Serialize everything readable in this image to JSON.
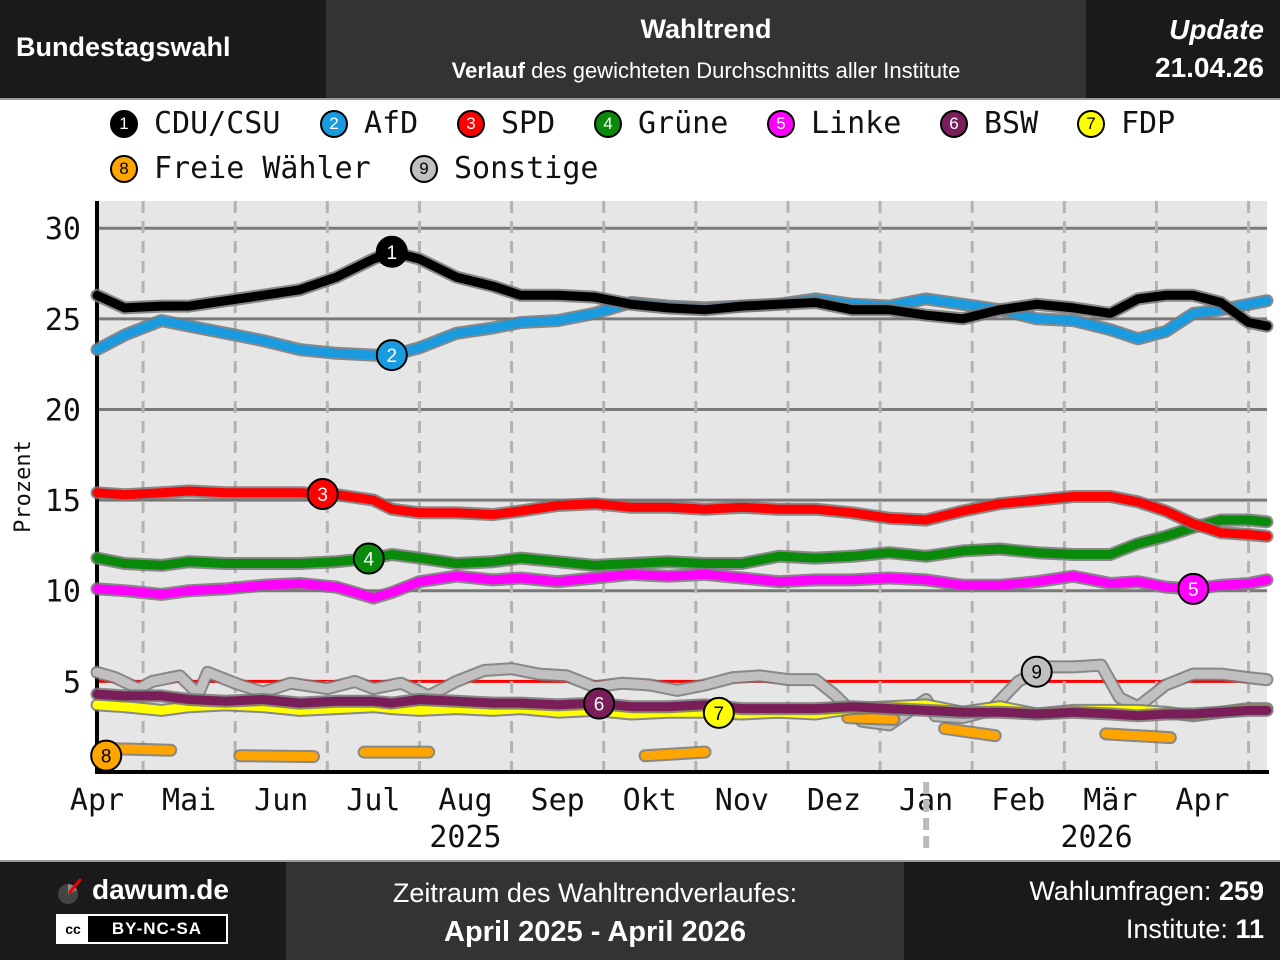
{
  "header": {
    "left_title": "Bundestagswahl",
    "center_title": "Wahltrend",
    "center_subtitle_bold": "Verlauf",
    "center_subtitle_rest": " des gewichteten Durchschnitts aller Institute",
    "update_label": "Update",
    "update_date": "21.04.26"
  },
  "legend": [
    {
      "num": "1",
      "label": "CDU/CSU",
      "color": "#000000",
      "text_color": "#ffffff"
    },
    {
      "num": "2",
      "label": "AfD",
      "color": "#1a9be0",
      "text_color": "#ffffff"
    },
    {
      "num": "3",
      "label": "SPD",
      "color": "#ff0000",
      "text_color": "#ffffff"
    },
    {
      "num": "4",
      "label": "Grüne",
      "color": "#0a8a0a",
      "text_color": "#ffffff"
    },
    {
      "num": "5",
      "label": "Linke",
      "color": "#ff00ff",
      "text_color": "#ffffff"
    },
    {
      "num": "6",
      "label": "BSW",
      "color": "#7a1e5a",
      "text_color": "#ffffff"
    },
    {
      "num": "7",
      "label": "FDP",
      "color": "#ffff00",
      "text_color": "#000000"
    },
    {
      "num": "8",
      "label": "Freie Wähler",
      "color": "#ffa500",
      "text_color": "#000000"
    },
    {
      "num": "9",
      "label": "Sonstige",
      "color": "#c0c0c0",
      "text_color": "#000000"
    }
  ],
  "chart_data": {
    "type": "line",
    "title": "Wahltrend",
    "xlabel": "",
    "ylabel": "Prozent",
    "ylim": [
      0,
      31.5
    ],
    "yticks": [
      5,
      10,
      15,
      20,
      25,
      30
    ],
    "threshold": 5,
    "threshold_color": "#ff0000",
    "x_range_months": [
      0,
      12.7
    ],
    "x_tick_labels": [
      "Apr",
      "Mai",
      "Jun",
      "Jul",
      "Aug",
      "Sep",
      "Okt",
      "Nov",
      "Dez",
      "Jan",
      "Feb",
      "Mär",
      "Apr"
    ],
    "year_labels": [
      {
        "label": "2025",
        "month": 4.0
      },
      {
        "label": "2026",
        "month": 10.85
      }
    ],
    "year_separator_month": 9.0,
    "series": [
      {
        "name": "CDU/CSU",
        "num": "1",
        "color": "#000000",
        "label_at": 3.2,
        "x": [
          0,
          0.3,
          0.7,
          1.0,
          1.4,
          1.8,
          2.2,
          2.6,
          3.0,
          3.2,
          3.5,
          3.9,
          4.3,
          4.6,
          5.0,
          5.4,
          5.8,
          6.2,
          6.6,
          7.0,
          7.4,
          7.8,
          8.2,
          8.6,
          9.0,
          9.4,
          9.8,
          10.2,
          10.6,
          11.0,
          11.3,
          11.6,
          11.9,
          12.2,
          12.5,
          12.7
        ],
        "y": [
          26.3,
          25.6,
          25.7,
          25.7,
          26.0,
          26.3,
          26.6,
          27.3,
          28.3,
          28.7,
          28.3,
          27.3,
          26.8,
          26.3,
          26.3,
          26.2,
          25.8,
          25.6,
          25.5,
          25.7,
          25.8,
          25.9,
          25.5,
          25.5,
          25.2,
          25.0,
          25.5,
          25.8,
          25.6,
          25.3,
          26.1,
          26.3,
          26.3,
          25.9,
          24.8,
          24.6
        ]
      },
      {
        "name": "AfD",
        "num": "2",
        "color": "#1a9be0",
        "label_at": 3.2,
        "x": [
          0,
          0.3,
          0.7,
          1.0,
          1.4,
          1.8,
          2.2,
          2.6,
          3.0,
          3.2,
          3.5,
          3.9,
          4.3,
          4.6,
          5.0,
          5.4,
          5.8,
          6.2,
          6.6,
          7.0,
          7.4,
          7.8,
          8.2,
          8.6,
          9.0,
          9.4,
          9.8,
          10.2,
          10.6,
          11.0,
          11.3,
          11.6,
          11.9,
          12.2,
          12.5,
          12.7
        ],
        "y": [
          23.3,
          24.1,
          24.9,
          24.6,
          24.2,
          23.8,
          23.3,
          23.1,
          23.0,
          23.0,
          23.4,
          24.2,
          24.5,
          24.8,
          24.9,
          25.3,
          25.9,
          25.7,
          25.6,
          25.7,
          25.8,
          26.1,
          25.8,
          25.7,
          26.1,
          25.8,
          25.5,
          25.0,
          24.9,
          24.4,
          23.9,
          24.3,
          25.3,
          25.5,
          25.8,
          26.0
        ]
      },
      {
        "name": "SPD",
        "num": "3",
        "color": "#ff0000",
        "label_at": 2.45,
        "x": [
          0,
          0.3,
          0.7,
          1.0,
          1.4,
          1.8,
          2.2,
          2.6,
          3.0,
          3.2,
          3.5,
          3.9,
          4.3,
          4.6,
          5.0,
          5.4,
          5.8,
          6.2,
          6.6,
          7.0,
          7.4,
          7.8,
          8.2,
          8.6,
          9.0,
          9.4,
          9.8,
          10.2,
          10.6,
          11.0,
          11.3,
          11.6,
          11.9,
          12.2,
          12.5,
          12.7
        ],
        "y": [
          15.4,
          15.3,
          15.4,
          15.5,
          15.4,
          15.4,
          15.4,
          15.3,
          15.0,
          14.5,
          14.3,
          14.3,
          14.2,
          14.4,
          14.7,
          14.8,
          14.6,
          14.6,
          14.5,
          14.6,
          14.5,
          14.5,
          14.3,
          14.0,
          13.9,
          14.4,
          14.8,
          15.0,
          15.2,
          15.2,
          14.9,
          14.4,
          13.7,
          13.2,
          13.1,
          13.0
        ]
      },
      {
        "name": "Grüne",
        "num": "4",
        "color": "#0a8a0a",
        "label_at": 2.95,
        "x": [
          0,
          0.3,
          0.7,
          1.0,
          1.4,
          1.8,
          2.2,
          2.6,
          3.0,
          3.2,
          3.5,
          3.9,
          4.3,
          4.6,
          5.0,
          5.4,
          5.8,
          6.2,
          6.6,
          7.0,
          7.4,
          7.8,
          8.2,
          8.6,
          9.0,
          9.4,
          9.8,
          10.2,
          10.6,
          11.0,
          11.3,
          11.6,
          11.9,
          12.2,
          12.5,
          12.7
        ],
        "y": [
          11.8,
          11.5,
          11.4,
          11.6,
          11.5,
          11.5,
          11.5,
          11.6,
          11.8,
          12.0,
          11.8,
          11.5,
          11.6,
          11.8,
          11.6,
          11.4,
          11.5,
          11.6,
          11.5,
          11.5,
          11.9,
          11.8,
          11.9,
          12.1,
          11.9,
          12.2,
          12.3,
          12.1,
          12.0,
          12.0,
          12.6,
          13.0,
          13.5,
          13.9,
          13.9,
          13.8
        ]
      },
      {
        "name": "Linke",
        "num": "5",
        "color": "#ff00ff",
        "label_at": 11.9,
        "x": [
          0,
          0.3,
          0.7,
          1.0,
          1.4,
          1.8,
          2.2,
          2.6,
          3.0,
          3.2,
          3.5,
          3.9,
          4.3,
          4.6,
          5.0,
          5.4,
          5.8,
          6.2,
          6.6,
          7.0,
          7.4,
          7.8,
          8.2,
          8.6,
          9.0,
          9.4,
          9.8,
          10.2,
          10.6,
          11.0,
          11.3,
          11.6,
          11.9,
          12.2,
          12.5,
          12.7
        ],
        "y": [
          10.1,
          10.0,
          9.8,
          10.0,
          10.1,
          10.3,
          10.4,
          10.2,
          9.6,
          9.9,
          10.5,
          10.8,
          10.6,
          10.7,
          10.5,
          10.7,
          10.9,
          10.8,
          10.9,
          10.7,
          10.5,
          10.6,
          10.6,
          10.7,
          10.6,
          10.3,
          10.3,
          10.5,
          10.8,
          10.4,
          10.5,
          10.2,
          10.1,
          10.3,
          10.4,
          10.6
        ]
      },
      {
        "name": "BSW",
        "num": "6",
        "color": "#7a1e5a",
        "label_at": 5.45,
        "x": [
          0,
          0.3,
          0.7,
          1.0,
          1.4,
          1.8,
          2.2,
          2.6,
          3.0,
          3.2,
          3.5,
          3.9,
          4.3,
          4.6,
          5.0,
          5.4,
          5.8,
          6.2,
          6.6,
          7.0,
          7.4,
          7.8,
          8.2,
          8.6,
          9.0,
          9.4,
          9.8,
          10.2,
          10.6,
          11.0,
          11.3,
          11.6,
          11.9,
          12.2,
          12.5,
          12.7
        ],
        "y": [
          4.3,
          4.2,
          4.2,
          4.0,
          3.9,
          4.0,
          3.8,
          3.9,
          3.9,
          3.8,
          4.0,
          3.9,
          3.8,
          3.8,
          3.7,
          3.8,
          3.6,
          3.6,
          3.7,
          3.5,
          3.5,
          3.5,
          3.6,
          3.5,
          3.4,
          3.3,
          3.3,
          3.2,
          3.3,
          3.2,
          3.1,
          3.2,
          3.2,
          3.3,
          3.4,
          3.4
        ]
      },
      {
        "name": "FDP",
        "num": "7",
        "color": "#ffff00",
        "label_at": 6.75,
        "x": [
          0,
          0.3,
          0.7,
          1.0,
          1.4,
          1.8,
          2.2,
          2.6,
          3.0,
          3.2,
          3.5,
          3.9,
          4.3,
          4.6,
          5.0,
          5.4,
          5.8,
          6.2,
          6.6,
          7.0,
          7.4,
          7.8,
          8.2,
          8.6,
          9.0,
          9.4,
          9.8,
          10.2,
          10.6,
          11.0,
          11.3,
          11.6,
          11.9,
          12.2,
          12.5,
          12.7
        ],
        "y": [
          3.7,
          3.6,
          3.4,
          3.6,
          3.7,
          3.6,
          3.4,
          3.5,
          3.6,
          3.5,
          3.4,
          3.5,
          3.4,
          3.5,
          3.3,
          3.4,
          3.2,
          3.3,
          3.3,
          3.2,
          3.3,
          3.2,
          3.5,
          3.6,
          3.7,
          3.3,
          3.6,
          3.2,
          3.4,
          3.4,
          3.4,
          3.3,
          3.1,
          3.3,
          3.5,
          3.5
        ]
      },
      {
        "name": "Freie Wähler",
        "num": "8",
        "color": "#ffa500",
        "label_at": 0.1,
        "segments": [
          {
            "x": [
              0.05,
              0.8
            ],
            "y": [
              1.3,
              1.2
            ]
          },
          {
            "x": [
              1.55,
              2.35
            ],
            "y": [
              0.9,
              0.85
            ]
          },
          {
            "x": [
              2.9,
              3.6
            ],
            "y": [
              1.1,
              1.1
            ]
          },
          {
            "x": [
              5.95,
              6.6
            ],
            "y": [
              0.9,
              1.1
            ]
          },
          {
            "x": [
              8.15,
              8.65
            ],
            "y": [
              3.0,
              2.9
            ]
          },
          {
            "x": [
              9.2,
              9.75
            ],
            "y": [
              2.4,
              2.0
            ]
          },
          {
            "x": [
              10.95,
              11.65
            ],
            "y": [
              2.1,
              1.9
            ]
          }
        ]
      },
      {
        "name": "Sonstige",
        "num": "9",
        "color": "#c0c0c0",
        "label_at": 10.2,
        "x": [
          0,
          0.2,
          0.45,
          0.6,
          0.9,
          1.1,
          1.2,
          1.5,
          1.8,
          2.1,
          2.5,
          2.8,
          3.0,
          3.3,
          3.6,
          3.9,
          4.2,
          4.5,
          4.8,
          5.1,
          5.4,
          5.7,
          6.0,
          6.3,
          6.6,
          6.9,
          7.2,
          7.5,
          7.8,
          8.0,
          8.3,
          8.6,
          9.0,
          9.1,
          9.4,
          9.7,
          10.0,
          10.3,
          10.6,
          10.9,
          11.1,
          11.3,
          11.6,
          11.9,
          12.2,
          12.5,
          12.7
        ],
        "y": [
          5.5,
          5.2,
          4.6,
          5.0,
          5.3,
          4.3,
          5.5,
          4.9,
          4.4,
          4.9,
          4.6,
          5.0,
          4.6,
          4.9,
          4.2,
          5.0,
          5.6,
          5.7,
          5.4,
          5.3,
          4.7,
          4.9,
          4.8,
          4.5,
          4.8,
          5.2,
          5.3,
          5.1,
          5.1,
          4.3,
          2.8,
          2.6,
          4.0,
          3.1,
          3.0,
          3.4,
          5.0,
          5.8,
          5.8,
          5.9,
          4.1,
          3.6,
          4.8,
          5.4,
          5.4,
          5.2,
          5.1
        ]
      }
    ]
  },
  "footer": {
    "site": "dawum.de",
    "license": "BY-NC-SA",
    "cc_mark": "cc",
    "period_label": "Zeitraum des Wahltrendverlaufes:",
    "period_value": "April 2025 - April 2026",
    "polls_label": "Wahlumfragen:",
    "polls_value": "259",
    "institutes_label": "Institute:",
    "institutes_value": "11"
  }
}
